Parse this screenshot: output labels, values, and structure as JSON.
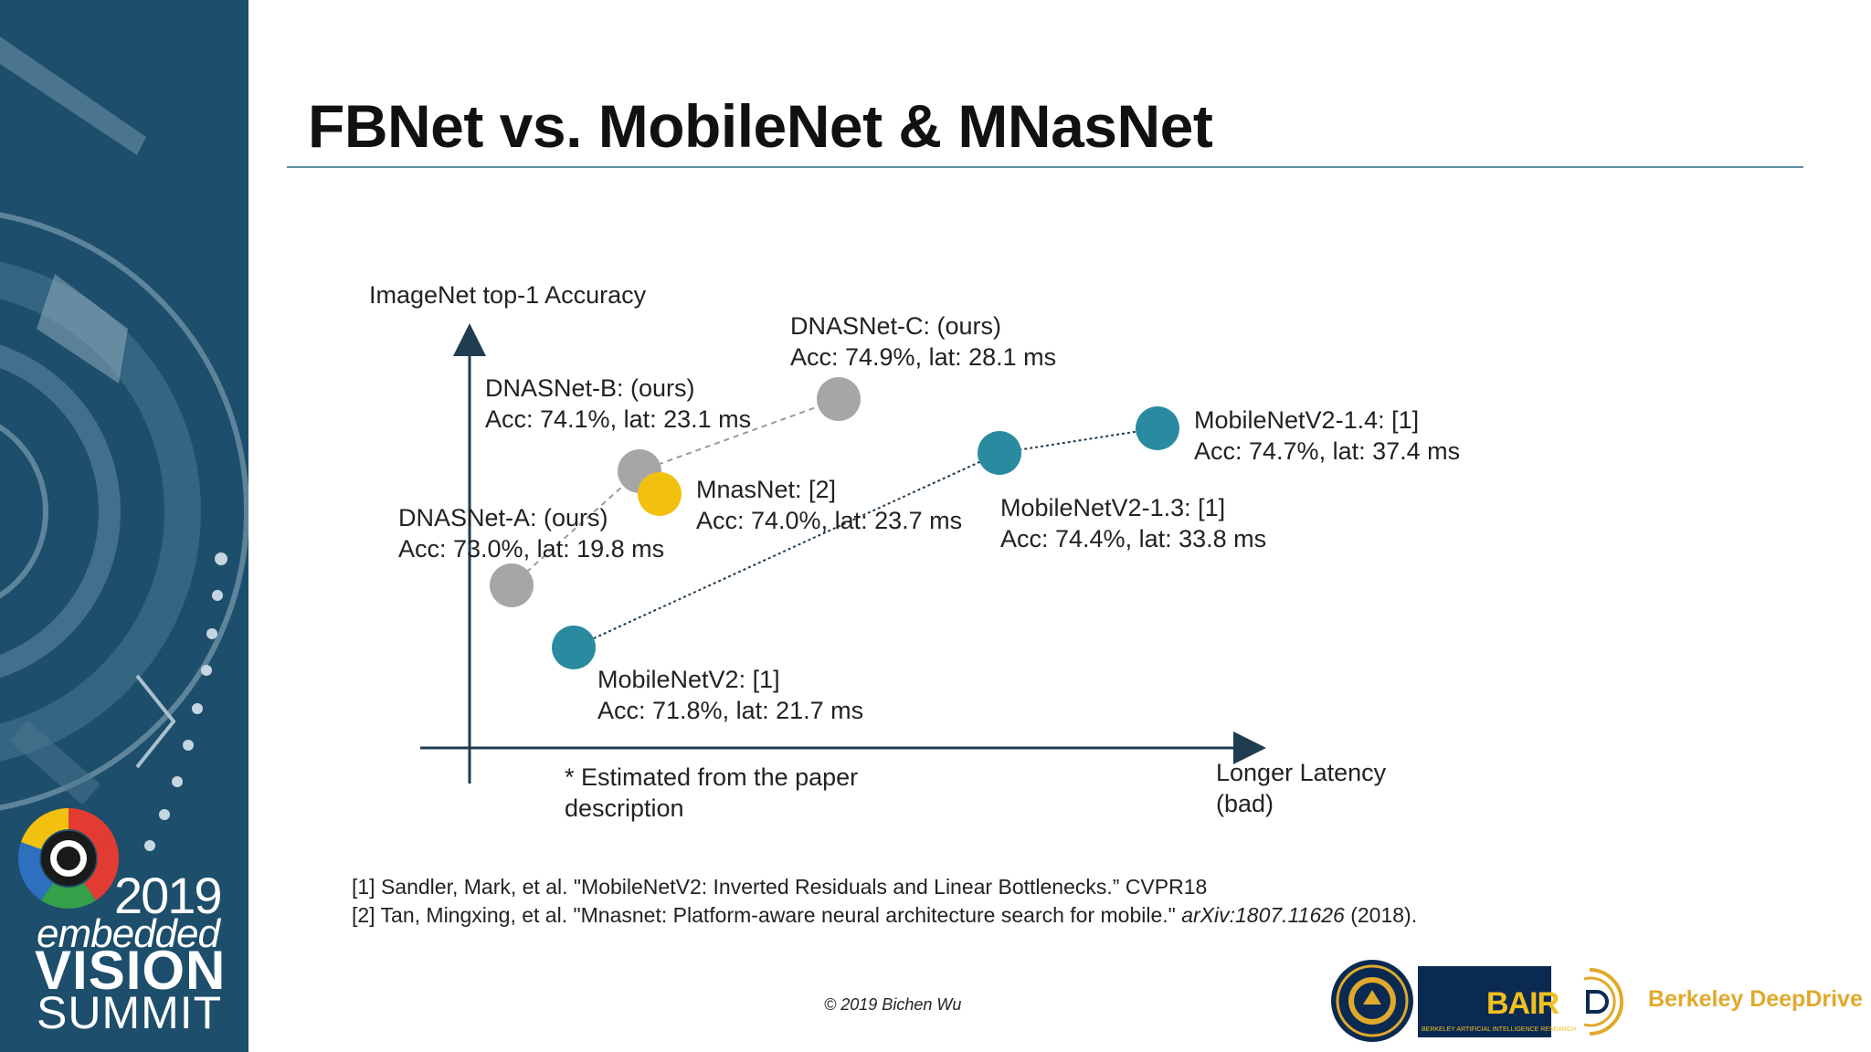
{
  "slide": {
    "title": "FBNet vs. MobileNet & MNasNet",
    "footnote_l1": "* Estimated from the paper",
    "footnote_l2": "description",
    "copyright": "© 2019 Bichen Wu",
    "ref1": "[1] Sandler, Mark, et al. \"MobileNetV2: Inverted Residuals and Linear Bottlenecks.” CVPR18",
    "ref2_a": "[2] Tan, Mingxing, et al. \"Mnasnet: Platform-aware neural architecture search for mobile.\" ",
    "ref2_b": "arXiv:1807.11626",
    "ref2_c": " (2018)."
  },
  "sidebar": {
    "year": "2019",
    "line2": "embedded",
    "line3": "VISION",
    "line4": "SUMMIT"
  },
  "logos": {
    "bair": "BAIR",
    "bair_sub": "BERKELEY ARTIFICIAL INTELLIGENCE RESEARCH",
    "bdd": "Berkeley DeepDrive"
  },
  "colors": {
    "sidebar": "#1d4e6b",
    "dnas": "#a6a6a6",
    "mnas": "#f2c10f",
    "mobilenet": "#2a8ba0",
    "axis": "#1f3c50"
  },
  "chart_data": {
    "type": "scatter",
    "ylabel": "ImageNet top-1 Accuracy",
    "xlabel_l1": "Longer Latency",
    "xlabel_l2": "(bad)",
    "x_unit": "ms",
    "y_unit": "%",
    "points": [
      {
        "id": "dnas_a",
        "group": "dnas",
        "x": 19.8,
        "y": 73.0,
        "l1": "DNASNet-A: (ours)",
        "l2": "Acc: 73.0%, lat: 19.8 ms"
      },
      {
        "id": "dnas_b",
        "group": "dnas",
        "x": 23.1,
        "y": 74.1,
        "l1": "DNASNet-B: (ours)",
        "l2": "Acc: 74.1%, lat: 23.1 ms"
      },
      {
        "id": "dnas_c",
        "group": "dnas",
        "x": 28.1,
        "y": 74.9,
        "l1": "DNASNet-C: (ours)",
        "l2": "Acc: 74.9%, lat: 28.1 ms"
      },
      {
        "id": "mnas",
        "group": "mnas",
        "x": 23.7,
        "y": 74.0,
        "l1": "MnasNet: [2]",
        "l2": "Acc: 74.0%, lat: 23.7 ms"
      },
      {
        "id": "mbv2",
        "group": "mobilenet",
        "x": 21.7,
        "y": 71.8,
        "l1": "MobileNetV2: [1]",
        "l2": "Acc: 71.8%, lat: 21.7 ms"
      },
      {
        "id": "mbv2_13",
        "group": "mobilenet",
        "x": 33.8,
        "y": 74.4,
        "l1": "MobileNetV2-1.3: [1]",
        "l2": "Acc: 74.4%, lat: 33.8 ms"
      },
      {
        "id": "mbv2_14",
        "group": "mobilenet",
        "x": 37.4,
        "y": 74.7,
        "l1": "MobileNetV2-1.4: [1]",
        "l2": "Acc: 74.7%, lat: 37.4 ms"
      }
    ],
    "lines": [
      {
        "group": "dnas",
        "style": "dashed",
        "points": [
          "dnas_a",
          "dnas_b",
          "dnas_c"
        ]
      },
      {
        "group": "mobilenet",
        "style": "dotted",
        "points": [
          "mbv2",
          "mbv2_13",
          "mbv2_14"
        ]
      }
    ]
  }
}
